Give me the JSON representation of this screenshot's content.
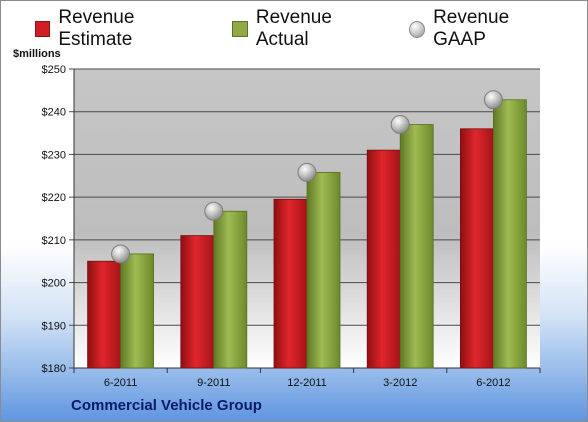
{
  "company_label": "Commercial Vehicle Group",
  "colors": {
    "estimate": "#d01f24",
    "actual": "#8faa45",
    "gaap": "#b8b8b8"
  },
  "chart_data": {
    "type": "bar",
    "ylabel": "$millions",
    "categories": [
      "6-2011",
      "9-2011",
      "12-2011",
      "3-2012",
      "6-2012"
    ],
    "ylim": [
      180,
      250
    ],
    "yticks": [
      180,
      190,
      200,
      210,
      220,
      230,
      240,
      250
    ],
    "ytick_labels": [
      "$180",
      "$190",
      "$200",
      "$210",
      "$220",
      "$230",
      "$240",
      "$250"
    ],
    "grid": true,
    "legend": "top",
    "series": [
      {
        "name": "Revenue Estimate",
        "kind": "bar",
        "values": [
          205,
          211,
          219.5,
          231,
          236
        ]
      },
      {
        "name": "Revenue Actual",
        "kind": "bar",
        "values": [
          206.7,
          216.7,
          225.8,
          237,
          242.8
        ]
      },
      {
        "name": "Revenue GAAP",
        "kind": "point",
        "values": [
          206.7,
          216.7,
          225.8,
          237,
          242.8
        ]
      }
    ]
  }
}
